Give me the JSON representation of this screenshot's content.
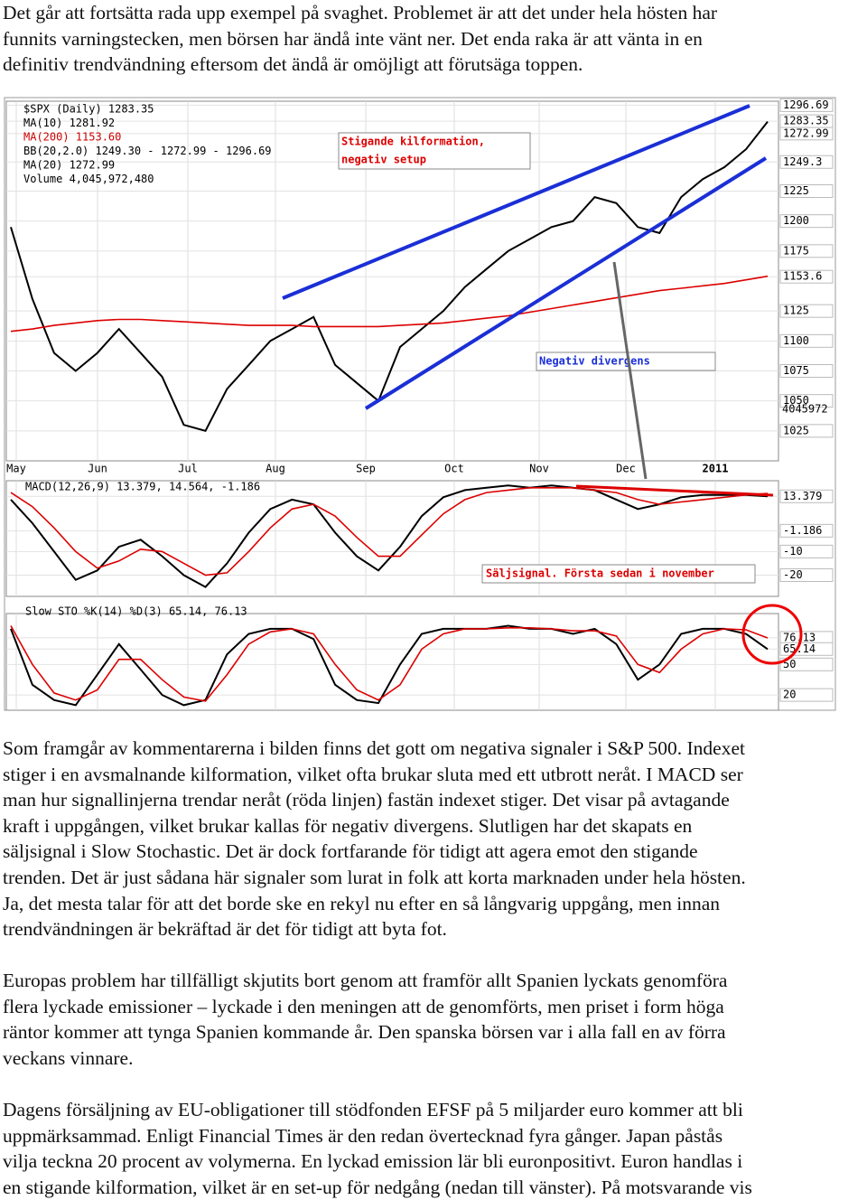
{
  "paragraphs": [
    [
      "Det går att fortsätta rada upp exempel på svaghet. Problemet är att det under hela hösten har",
      "funnits varningstecken, men börsen har ändå inte vänt ner. Det enda raka är att vänta in en",
      "definitiv trendvändning eftersom det ändå är omöjligt att förutsäga toppen."
    ],
    [
      "Som framgår av kommentarerna i bilden finns det gott om negativa signaler i S&P 500. Indexet",
      "stiger i en avsmalnande kilformation, vilket ofta brukar sluta med ett utbrott neråt. I MACD ser",
      "man hur signallinjerna trendar neråt (röda linjen) fastän indexet stiger. Det visar på avtagande",
      "kraft i uppgången, vilket brukar kallas för negativ divergens. Slutligen har det skapats en",
      "säljsignal i Slow Stochastic. Det är dock fortfarande för tidigt att agera emot den stigande",
      "trenden. Det är just sådana här signaler som lurat in folk att korta marknaden under hela hösten.",
      "Ja, det mesta talar för att det borde ske en rekyl nu efter en så långvarig uppgång, men innan",
      "trendvändningen är bekräftad är det för tidigt att byta fot."
    ],
    [
      "Europas problem har tillfälligt skjutits bort genom att framför allt Spanien lyckats genomföra",
      "flera lyckade emissioner – lyckade i den meningen att de genomförts, men priset i form höga",
      "räntor kommer att tynga Spanien kommande år. Den spanska börsen var i alla fall en av förra",
      "veckans vinnare."
    ],
    [
      "Dagens försäljning av EU-obligationer till stödfonden EFSF på 5 miljarder euro kommer att bli",
      "uppmärksammad. Enligt Financial Times är den redan övertecknad fyra gånger. Japan påstås",
      "vilja teckna 20 procent av volymerna. En lyckad emission lär bli euronpositivt. Euron handlas i",
      "en stigande kilformation, vilket är en set-up för nedgång (nedan till vänster). På motsvarande vis"
    ]
  ],
  "figure": {
    "months": [
      "May",
      "Jun",
      "Jul",
      "Aug",
      "Sep",
      "Oct",
      "Nov",
      "Dec",
      "2011"
    ],
    "price": {
      "type": "line",
      "legend": [
        "$SPX (Daily) 1283.35",
        "MA(10) 1281.92",
        "MA(200) 1153.60",
        "BB(20,2.0) 1249.30 - 1272.99 - 1296.69",
        "MA(20) 1272.99",
        "Volume 4,045,972,480"
      ],
      "ylim": [
        1000,
        1300
      ],
      "yticks": [
        1025,
        1050,
        1075,
        1100,
        1125,
        1153.6,
        1175,
        1200,
        1225,
        1249.3,
        1272.99,
        1283.35,
        1296.69
      ],
      "volume_label": "4045972",
      "annotations": [
        "Stigande kilformation,",
        "negativ setup",
        "Negativ divergens"
      ],
      "series": [
        {
          "name": "$SPX",
          "color": "#000000",
          "values": [
            1195,
            1135,
            1090,
            1075,
            1090,
            1110,
            1090,
            1070,
            1030,
            1025,
            1060,
            1080,
            1100,
            1110,
            1120,
            1080,
            1065,
            1050,
            1095,
            1110,
            1125,
            1145,
            1160,
            1175,
            1185,
            1195,
            1200,
            1220,
            1215,
            1195,
            1190,
            1220,
            1235,
            1245,
            1260,
            1283
          ]
        },
        {
          "name": "MA(200)",
          "color": "#dd0000",
          "values": [
            1108,
            1110,
            1113,
            1115,
            1117,
            1118,
            1118,
            1117,
            1116,
            1115,
            1114,
            1113,
            1113,
            1113,
            1112,
            1112,
            1112,
            1112,
            1113,
            1114,
            1115,
            1117,
            1119,
            1121,
            1124,
            1127,
            1130,
            1133,
            1136,
            1139,
            1142,
            1144,
            1146,
            1148,
            1151,
            1154
          ]
        }
      ]
    },
    "macd": {
      "type": "line",
      "legend": "MACD(12,26,9) 13.379, 14.564, -1.186",
      "ylim": [
        -29,
        20
      ],
      "yticks": [
        13.379,
        -1.186,
        -10,
        -20
      ],
      "annotation": "Säljsignal. Första sedan i november",
      "series": [
        {
          "name": "MACD",
          "color": "#000000",
          "values": [
            12,
            2,
            -10,
            -22,
            -18,
            -8,
            -5,
            -12,
            -20,
            -25,
            -15,
            -2,
            8,
            12,
            10,
            -2,
            -12,
            -18,
            -8,
            5,
            13,
            16,
            17,
            18,
            17,
            18,
            17,
            16,
            12,
            8,
            10,
            13,
            14,
            14,
            14,
            13.4
          ]
        },
        {
          "name": "Signal",
          "color": "#dd0000",
          "values": [
            15,
            9,
            0,
            -10,
            -17,
            -14,
            -9,
            -10,
            -15,
            -20,
            -19,
            -10,
            0,
            8,
            10,
            5,
            -4,
            -12,
            -12,
            -3,
            6,
            12,
            15,
            16,
            17,
            17,
            17,
            16,
            15,
            12,
            10,
            11,
            12,
            13,
            14,
            14.6
          ]
        }
      ]
    },
    "sto": {
      "type": "line",
      "legend": "Slow STO %K(14) %D(3) 65.14, 76.13",
      "ylim": [
        5,
        100
      ],
      "yticks": [
        76.13,
        65.14,
        50,
        20
      ],
      "series": [
        {
          "name": "%K",
          "color": "#000000",
          "values": [
            85,
            30,
            15,
            10,
            40,
            70,
            45,
            20,
            10,
            15,
            60,
            80,
            85,
            85,
            75,
            30,
            15,
            12,
            50,
            80,
            85,
            85,
            85,
            88,
            85,
            85,
            80,
            85,
            70,
            35,
            50,
            80,
            85,
            85,
            80,
            65
          ]
        },
        {
          "name": "%D",
          "color": "#dd0000",
          "values": [
            88,
            50,
            22,
            15,
            25,
            55,
            55,
            35,
            18,
            14,
            40,
            70,
            82,
            85,
            80,
            50,
            25,
            15,
            30,
            65,
            80,
            85,
            85,
            86,
            86,
            85,
            83,
            83,
            78,
            50,
            42,
            65,
            80,
            85,
            84,
            76
          ]
        }
      ]
    }
  }
}
